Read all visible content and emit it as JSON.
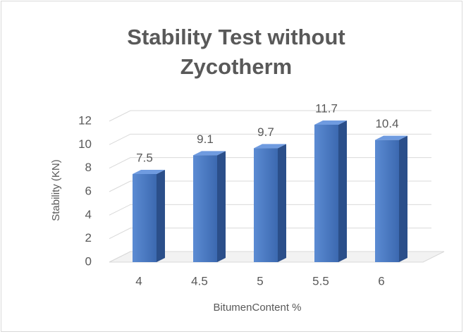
{
  "chart_data": {
    "type": "bar3d",
    "title": [
      "Stability Test without",
      "Zycotherm"
    ],
    "categories": [
      "4",
      "4.5",
      "5",
      "5.5",
      "6"
    ],
    "values": [
      7.5,
      9.1,
      9.7,
      11.7,
      10.4
    ],
    "color": "#4472c4",
    "xlabel": "BitumenContent %",
    "ylabel": "Stability (KN)",
    "ylim": [
      0,
      12
    ],
    "yticks": [
      0,
      2,
      4,
      6,
      8,
      10,
      12
    ],
    "grid": true
  }
}
